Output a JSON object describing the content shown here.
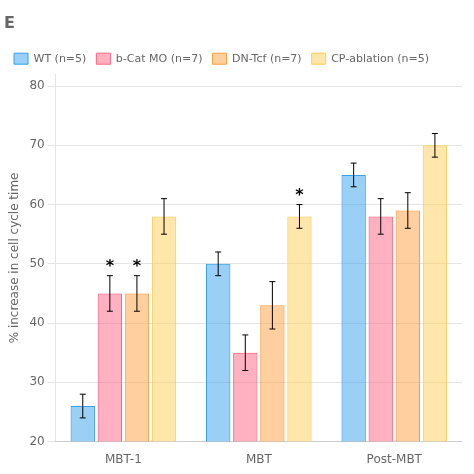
{
  "chart_data": {
    "type": "bar",
    "title": "E",
    "y_label": "% increase in cell cycle time",
    "categories": [
      "MBT-1",
      "MBT",
      "Post-MBT"
    ],
    "series": [
      {
        "name": "WT (n=5)",
        "values": [
          26,
          50,
          65
        ],
        "errors": [
          2,
          2,
          2
        ]
      },
      {
        "name": "b-Cat MO (n=7)",
        "values": [
          45,
          35,
          58
        ],
        "errors": [
          3,
          3,
          3
        ]
      },
      {
        "name": "DN-Tcf (n=7)",
        "values": [
          45,
          43,
          59
        ],
        "errors": [
          3,
          4,
          3
        ]
      },
      {
        "name": "CP-ablation (n=5)",
        "values": [
          58,
          58,
          70
        ],
        "errors": [
          3,
          2,
          2
        ]
      }
    ],
    "annotations": [
      {
        "text": "*",
        "category": "MBT-1",
        "series": "b-Cat MO (n=7)"
      },
      {
        "text": "*",
        "category": "MBT-1",
        "series": "DN-Tcf (n=7)"
      },
      {
        "text": "*",
        "category": "MBT",
        "series": "CP-ablation (n=5)"
      }
    ],
    "ylim": [
      20,
      82
    ],
    "yticks": [
      20,
      30,
      40,
      50,
      60,
      70,
      80
    ],
    "grid": true,
    "legend": "upper left"
  }
}
